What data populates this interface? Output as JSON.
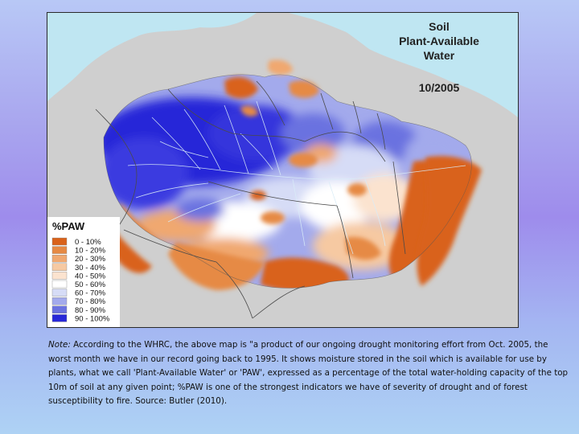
{
  "map": {
    "title_lines": [
      "Soil",
      "Plant-Available",
      "Water"
    ],
    "date": "10/2005",
    "legend": {
      "title": "%PAW",
      "items": [
        {
          "label": "0 - 10%",
          "color": "#d9621a"
        },
        {
          "label": "10 - 20%",
          "color": "#e68a44"
        },
        {
          "label": "20 - 30%",
          "color": "#f0a870"
        },
        {
          "label": "30 - 40%",
          "color": "#f6c9a2"
        },
        {
          "label": "40 - 50%",
          "color": "#fbe3cf"
        },
        {
          "label": "50 - 60%",
          "color": "#ffffff"
        },
        {
          "label": "60 - 70%",
          "color": "#d6dcf6"
        },
        {
          "label": "70 - 80%",
          "color": "#a3aaec"
        },
        {
          "label": "80 - 90%",
          "color": "#6b72e0"
        },
        {
          "label": "90 - 100%",
          "color": "#2828d8"
        }
      ]
    },
    "colors": {
      "ocean": "#bfe6f2",
      "land": "#cfcfcf",
      "border": "#4a4a4a",
      "river": "#d9ecf8"
    }
  },
  "note": {
    "lead": "Note:",
    "text": "According to the WHRC, the above map is \"a product of our ongoing drought monitoring effort from Oct. 2005, the worst month we have in our record going back to 1995. It shows moisture stored in the soil which is available for use by plants, what we call 'Plant-Available Water' or 'PAW', expressed as a percentage of the total water-holding capacity of the top 10m of soil at any given point; %PAW is one of the strongest indicators we have of severity of drought and of forest susceptibility to fire. Source: Butler (2010)."
  }
}
